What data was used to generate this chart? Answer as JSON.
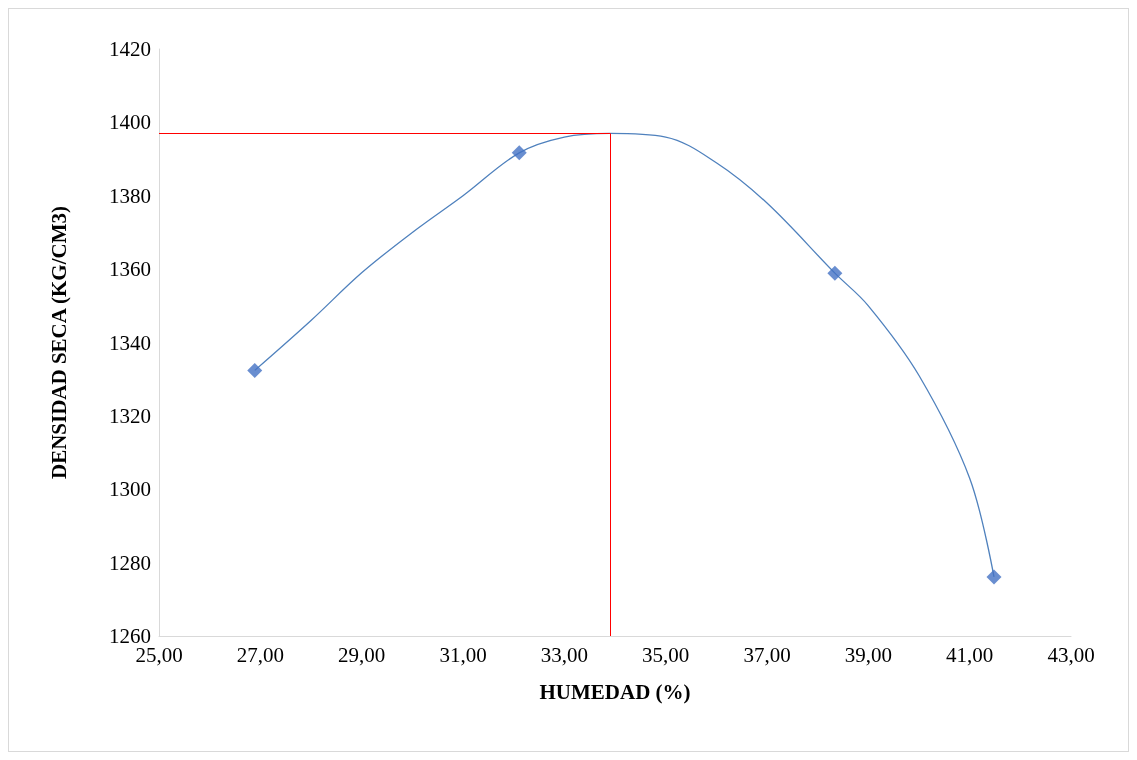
{
  "chart_data": {
    "type": "scatter",
    "xlabel": "HUMEDAD (%)",
    "ylabel": "DENSIDAD SECA (KG/CM3)",
    "xlim": [
      25,
      43
    ],
    "xticks": [
      {
        "value": 25,
        "label": "25,00"
      },
      {
        "value": 27,
        "label": "27,00"
      },
      {
        "value": 29,
        "label": "29,00"
      },
      {
        "value": 31,
        "label": "31,00"
      },
      {
        "value": 33,
        "label": "33,00"
      },
      {
        "value": 35,
        "label": "35,00"
      },
      {
        "value": 37,
        "label": "37,00"
      },
      {
        "value": 39,
        "label": "39,00"
      },
      {
        "value": 41,
        "label": "41,00"
      },
      {
        "value": 43,
        "label": "43,00"
      }
    ],
    "ylim": [
      1260,
      1420
    ],
    "yticks": [
      1260,
      1280,
      1300,
      1320,
      1340,
      1360,
      1380,
      1400,
      1420
    ],
    "grid": false,
    "series": [
      {
        "type": "line",
        "color": "#4f81bd",
        "marker": "none",
        "x": [
          26.89,
          28,
          29,
          30,
          31,
          32.11,
          33,
          33.9,
          35,
          36,
          37,
          38.34,
          39,
          40,
          41,
          41.48
        ],
        "values": [
          1332.4,
          1346,
          1359,
          1370,
          1380,
          1391.7,
          1396,
          1397,
          1396,
          1389,
          1378,
          1358.9,
          1350,
          1331,
          1303,
          1276.1
        ]
      },
      {
        "color": "#4472c4",
        "marker": "diamond",
        "x": [
          26.89,
          32.11,
          38.34,
          41.48
        ],
        "values": [
          1332.4,
          1391.7,
          1358.9,
          1276.1
        ]
      }
    ],
    "ref_lines": [
      {
        "axis": "y",
        "value": 1397,
        "color": "#ff0000"
      },
      {
        "axis": "x",
        "value": 33.9,
        "color": "#ff0000"
      }
    ]
  }
}
